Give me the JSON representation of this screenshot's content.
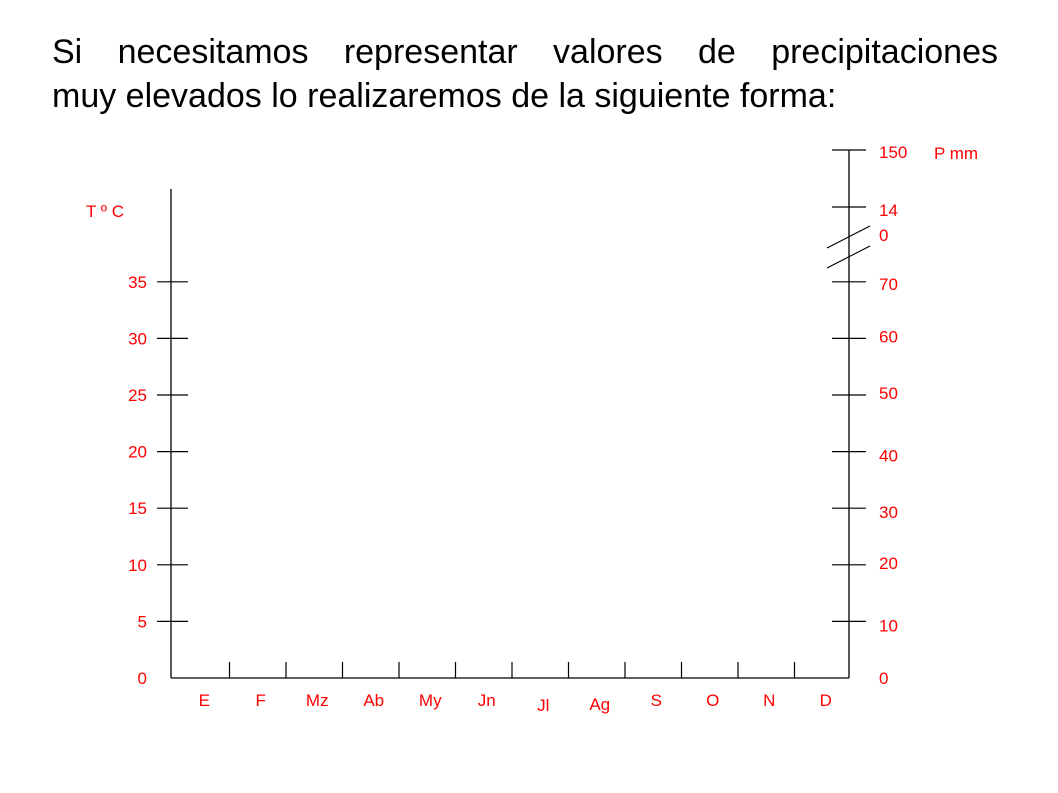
{
  "heading": {
    "line1": "Si necesitamos representar valores de precipitaciones",
    "line2": "muy elevados lo realizaremos de la siguiente forma:"
  },
  "colors": {
    "label": "#ff0000",
    "axis": "#000000",
    "text": "#000000"
  },
  "chart_data": {
    "type": "climograph-template",
    "temperature_axis": {
      "label": "T º C",
      "ticks": [
        "0",
        "5",
        "10",
        "15",
        "20",
        "25",
        "30",
        "35"
      ],
      "range": [
        0,
        35
      ]
    },
    "precipitation_axis": {
      "label": "P mm",
      "ticks": [
        "0",
        "10",
        "20",
        "30",
        "40",
        "50",
        "60",
        "70",
        "14\n0",
        "150"
      ],
      "axis_break": "between 70 and 140"
    },
    "months": [
      "E",
      "F",
      "Mz",
      "Ab",
      "My",
      "Jn",
      "Jl",
      "Ag",
      "S",
      "O",
      "N",
      "D"
    ]
  }
}
